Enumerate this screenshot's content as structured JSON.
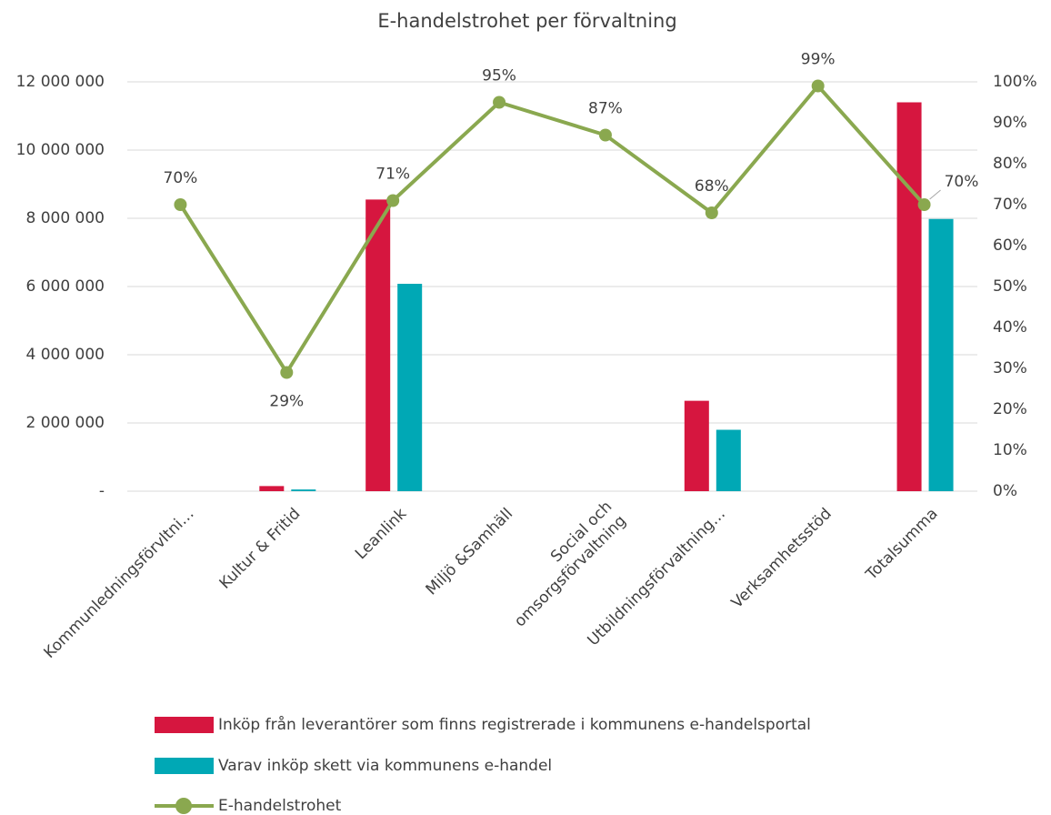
{
  "chart_data": {
    "type": "bar-line",
    "title": "E-handelstrohet per förvaltning",
    "categories": [
      "Kommunledningsförvltni…",
      "Kultur & Fritid",
      "Leanlink",
      "Miljö &Samhäll",
      "Social och\nomsorgsförvaltning",
      "Utbildningsförvaltning…",
      "Verksamhetsstöd",
      "Totalsumma"
    ],
    "series": [
      {
        "name": "Inköp från leverantörer som finns registrerade i kommunens e-handelsportal",
        "type": "bar",
        "color": "#d6163f",
        "values": [
          0,
          150000,
          8550000,
          0,
          0,
          2650000,
          0,
          11400000
        ]
      },
      {
        "name": "Varav inköp skett via kommunens e-handel",
        "type": "bar",
        "color": "#00a8b5",
        "values": [
          0,
          50000,
          6080000,
          0,
          0,
          1800000,
          0,
          7980000
        ]
      },
      {
        "name": "E-handelstrohet",
        "type": "line",
        "axis": "y2",
        "color": "#8aa84f",
        "values": [
          70,
          29,
          71,
          95,
          87,
          68,
          99,
          70
        ],
        "value_labels": [
          "70%",
          "29%",
          "71%",
          "95%",
          "87%",
          "68%",
          "99%",
          "70%"
        ]
      }
    ],
    "ylim": [
      0,
      12000000
    ],
    "yticks": [
      {
        "value": 0,
        "label": "-"
      },
      {
        "value": 2000000,
        "label": "2 000 000"
      },
      {
        "value": 4000000,
        "label": "4 000 000"
      },
      {
        "value": 6000000,
        "label": "6 000 000"
      },
      {
        "value": 8000000,
        "label": "8 000 000"
      },
      {
        "value": 10000000,
        "label": "10 000 000"
      },
      {
        "value": 12000000,
        "label": "12 000 000"
      }
    ],
    "y2lim": [
      0,
      100
    ],
    "y2ticks": [
      {
        "value": 0,
        "label": "0%"
      },
      {
        "value": 10,
        "label": "10%"
      },
      {
        "value": 20,
        "label": "20%"
      },
      {
        "value": 30,
        "label": "30%"
      },
      {
        "value": 40,
        "label": "40%"
      },
      {
        "value": 50,
        "label": "50%"
      },
      {
        "value": 60,
        "label": "60%"
      },
      {
        "value": 70,
        "label": "70%"
      },
      {
        "value": 80,
        "label": "80%"
      },
      {
        "value": 90,
        "label": "90%"
      },
      {
        "value": 100,
        "label": "100%"
      }
    ],
    "grid": true
  }
}
